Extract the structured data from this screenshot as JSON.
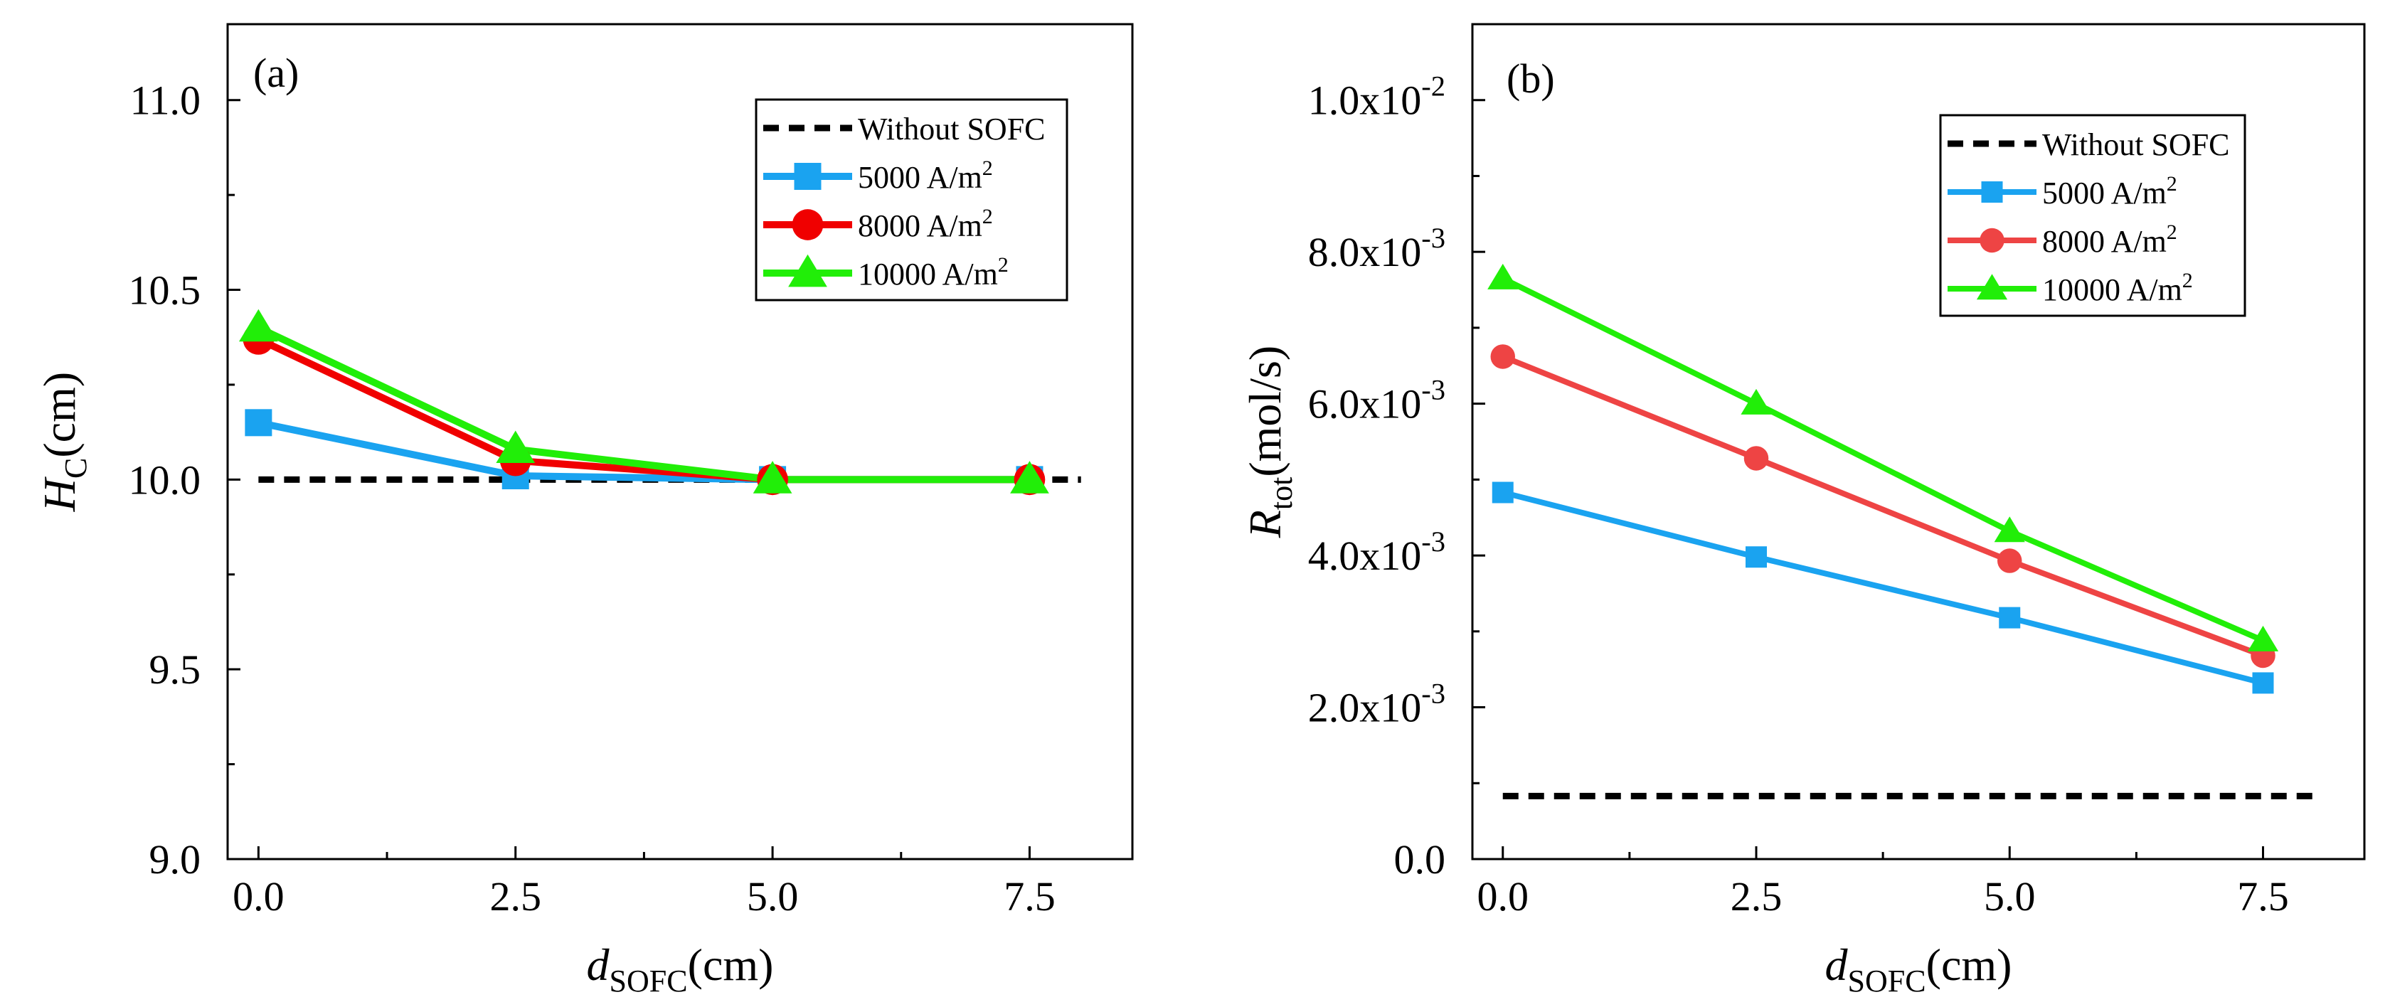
{
  "chart_data": [
    {
      "type": "line",
      "panel_label": "(a)",
      "xlabel": {
        "main": "d",
        "sub": "SOFC",
        "unit": "(cm)"
      },
      "ylabel": {
        "main": "H",
        "sub": "C",
        "unit": "(cm)"
      },
      "xlim": [
        -0.3,
        8.5
      ],
      "ylim": [
        9.0,
        11.2
      ],
      "x_ticks": [
        0.0,
        2.5,
        5.0,
        7.5
      ],
      "x_tick_labels": [
        "0.0",
        "2.5",
        "5.0",
        "7.5"
      ],
      "y_ticks": [
        9.0,
        9.5,
        10.0,
        10.5,
        11.0
      ],
      "y_tick_labels": [
        "9.0",
        "9.5",
        "10.0",
        "10.5",
        "11.0"
      ],
      "legend_position": "top-right",
      "grid": false,
      "baseline": {
        "name": "Without SOFC",
        "x": [
          0.0,
          8.0
        ],
        "y": [
          10.0,
          10.0
        ],
        "color": "#000000",
        "style": "dashed"
      },
      "x": [
        0.0,
        2.5,
        5.0,
        7.5
      ],
      "series": [
        {
          "name": "5000   A/m",
          "sup": "2",
          "values": [
            10.15,
            10.01,
            10.0,
            10.0
          ],
          "color": "#1aa3f0",
          "marker": "square"
        },
        {
          "name": "8000   A/m",
          "sup": "2",
          "values": [
            10.37,
            10.05,
            10.0,
            10.0
          ],
          "color": "#f00000",
          "marker": "circle"
        },
        {
          "name": "10000 A/m",
          "sup": "2",
          "values": [
            10.4,
            10.08,
            10.0,
            10.0
          ],
          "color": "#21ee08",
          "marker": "triangle"
        }
      ]
    },
    {
      "type": "line",
      "panel_label": "(b)",
      "xlabel": {
        "main": "d",
        "sub": "SOFC",
        "unit": "(cm)"
      },
      "ylabel": {
        "main": "R",
        "sub": "tot",
        "unit": "(mol/s)"
      },
      "xlim": [
        -0.3,
        8.5
      ],
      "ylim": [
        0.0,
        0.011
      ],
      "x_ticks": [
        0.0,
        2.5,
        5.0,
        7.5
      ],
      "x_tick_labels": [
        "0.0",
        "2.5",
        "5.0",
        "7.5"
      ],
      "y_ticks": [
        0.0,
        0.002,
        0.004,
        0.006,
        0.008,
        0.01
      ],
      "y_tick_labels": [
        {
          "base": "0.0",
          "exp": ""
        },
        {
          "base": "2.0x10",
          "exp": "-3"
        },
        {
          "base": "4.0x10",
          "exp": "-3"
        },
        {
          "base": "6.0x10",
          "exp": "-3"
        },
        {
          "base": "8.0x10",
          "exp": "-3"
        },
        {
          "base": "1.0x10",
          "exp": "-2"
        }
      ],
      "legend_position": "top-right",
      "grid": false,
      "baseline": {
        "name": "Without SOFC",
        "x": [
          0.0,
          8.0
        ],
        "y": [
          0.00083,
          0.00083
        ],
        "color": "#000000",
        "style": "dashed"
      },
      "x": [
        0.0,
        2.5,
        5.0,
        7.5
      ],
      "series": [
        {
          "name": "5000   A/m",
          "sup": "2",
          "values": [
            0.00483,
            0.00398,
            0.00318,
            0.00232
          ],
          "color": "#1aa3f0",
          "marker": "square"
        },
        {
          "name": "8000   A/m",
          "sup": "2",
          "values": [
            0.00662,
            0.00528,
            0.00393,
            0.00268
          ],
          "color": "#ee4444",
          "marker": "circle"
        },
        {
          "name": "10000 A/m",
          "sup": "2",
          "values": [
            0.00765,
            0.006,
            0.00432,
            0.00288
          ],
          "color": "#21ee08",
          "marker": "triangle"
        }
      ]
    }
  ]
}
